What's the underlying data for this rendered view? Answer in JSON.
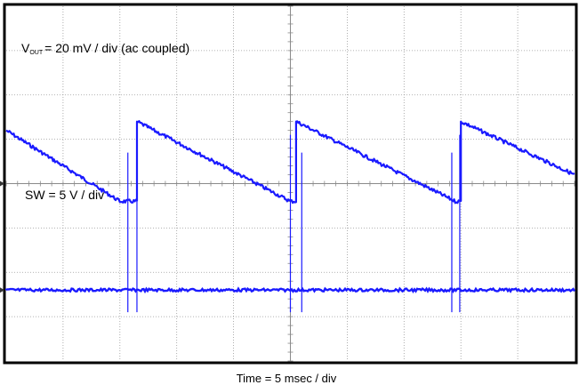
{
  "chart_data": {
    "type": "line",
    "subtype": "oscilloscope-capture",
    "xlabel": "Time = 5 msec / div",
    "grid": true,
    "grid_divisions": {
      "x": 10,
      "y": 8
    },
    "x_unit": "ms",
    "x_range": [
      0,
      50
    ],
    "trace_color": "#1a1aff",
    "channels": [
      {
        "name": "V_OUT",
        "label_prefix": "V",
        "label_subscript": "OUT",
        "label_rest": "= 20 mV / div (ac coupled)",
        "scale": "20 mV / div",
        "coupling": "ac",
        "points": [
          {
            "t": 0.0,
            "div": 1.2
          },
          {
            "t": 10.0,
            "div": -0.4
          },
          {
            "t": 11.5,
            "div": -0.4
          },
          {
            "t": 11.5,
            "div": 1.4
          },
          {
            "t": 25.0,
            "div": -0.4
          },
          {
            "t": 25.5,
            "div": -0.4
          },
          {
            "t": 25.5,
            "div": 1.4
          },
          {
            "t": 39.5,
            "div": -0.4
          },
          {
            "t": 40.0,
            "div": -0.4
          },
          {
            "t": 40.0,
            "div": 1.4
          },
          {
            "t": 50.0,
            "div": 0.2
          }
        ]
      },
      {
        "name": "SW",
        "label": "SW = 5 V / div",
        "scale": "5 V / div",
        "baseline_div": -2.4,
        "spikes": [
          {
            "t": 10.7,
            "height_div": 3.1,
            "depth_div": 0.5
          },
          {
            "t": 11.5,
            "height_div": 3.5,
            "depth_div": 0.5
          },
          {
            "t": 25.0,
            "height_div": 3.5,
            "depth_div": 0.5
          },
          {
            "t": 26.0,
            "height_div": 3.1,
            "depth_div": 0.5
          },
          {
            "t": 39.2,
            "height_div": 3.1,
            "depth_div": 0.5
          },
          {
            "t": 39.9,
            "height_div": 3.5,
            "depth_div": 0.5
          }
        ]
      }
    ]
  }
}
